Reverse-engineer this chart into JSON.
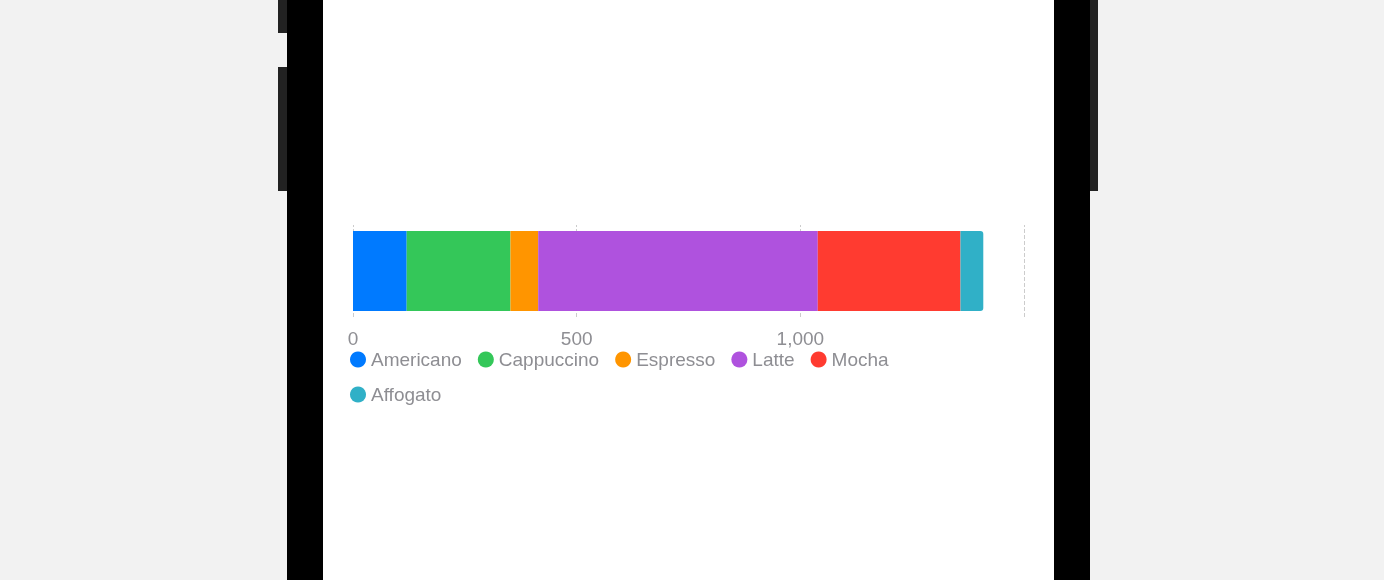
{
  "chart_data": {
    "type": "bar",
    "orientation": "horizontal",
    "stacked": true,
    "categories": [
      null
    ],
    "series": [
      {
        "name": "Americano",
        "color": "#007aff",
        "values": [
          120
        ]
      },
      {
        "name": "Cappuccino",
        "color": "#34c759",
        "values": [
          232
        ]
      },
      {
        "name": "Espresso",
        "color": "#ff9500",
        "values": [
          62
        ]
      },
      {
        "name": "Latte",
        "color": "#af52de",
        "values": [
          625
        ]
      },
      {
        "name": "Mocha",
        "color": "#ff3b30",
        "values": [
          319
        ]
      },
      {
        "name": "Affogato",
        "color": "#30b0c7",
        "values": [
          51
        ]
      }
    ],
    "xlim": [
      0,
      1500
    ],
    "xticks": [
      0,
      500,
      {
        "value": 1000,
        "label": "1,000"
      },
      {
        "value": 1500,
        "label": null
      }
    ],
    "legend": "bottom left"
  }
}
